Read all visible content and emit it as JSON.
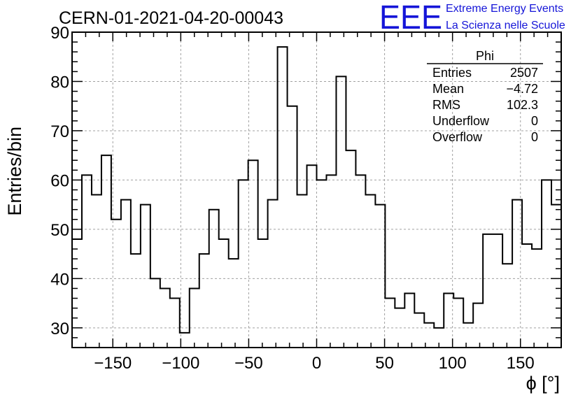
{
  "title": "CERN-01-2021-04-20-00043",
  "logo": {
    "mark": "EEE",
    "line1": "Extreme Energy Events",
    "line2": "La Scienza nelle Scuole",
    "color": "#1515d8"
  },
  "stats": {
    "name": "Phi",
    "rows": [
      {
        "label": "Entries",
        "value": "2507"
      },
      {
        "label": "Mean",
        "value": "−4.72"
      },
      {
        "label": "RMS",
        "value": "102.3"
      },
      {
        "label": "Underflow",
        "value": "0"
      },
      {
        "label": "Overflow",
        "value": "0"
      }
    ]
  },
  "chart_data": {
    "type": "bar",
    "histogram": true,
    "xlabel": "ϕ [°]",
    "ylabel": "Entries/bin",
    "xlim": [
      -180,
      180
    ],
    "ylim": [
      26,
      90
    ],
    "bin_width": 7.2,
    "x_ticks": [
      -150,
      -100,
      -50,
      0,
      50,
      100,
      150
    ],
    "x_tick_labels": [
      "−150",
      "−100",
      "−50",
      "0",
      "50",
      "100",
      "150"
    ],
    "y_ticks": [
      30,
      40,
      50,
      60,
      70,
      80,
      90
    ],
    "y_tick_labels": [
      "30",
      "40",
      "50",
      "60",
      "70",
      "80",
      "90"
    ],
    "grid": true,
    "values": [
      48,
      61,
      57,
      65,
      52,
      56,
      45,
      55,
      40,
      38,
      36,
      29,
      38,
      45,
      54,
      48,
      44,
      60,
      64,
      48,
      56,
      87,
      75,
      57,
      63,
      60,
      61,
      81,
      66,
      61,
      57,
      55,
      36,
      34,
      37,
      33,
      31,
      30,
      37,
      36,
      31,
      35,
      49,
      49,
      43,
      56,
      47,
      46,
      60,
      55
    ]
  }
}
